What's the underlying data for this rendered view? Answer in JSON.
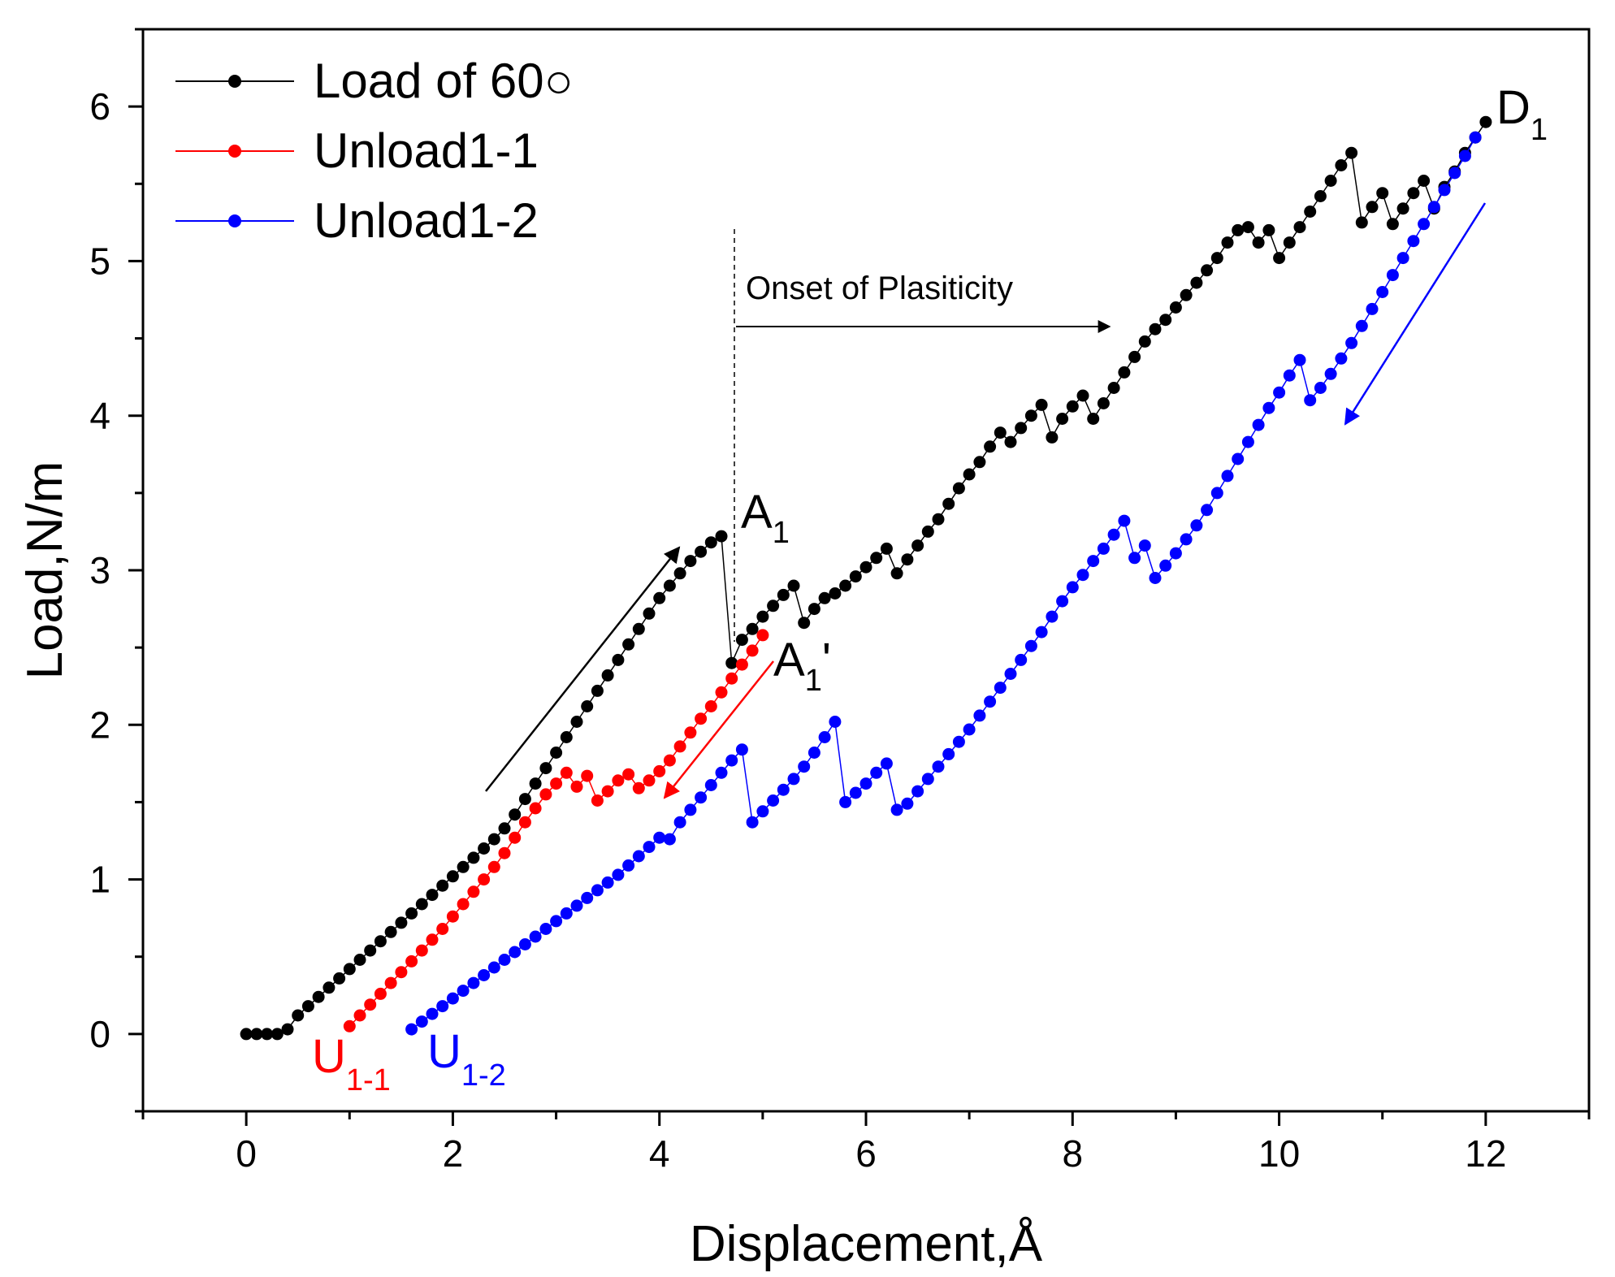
{
  "chart_data": {
    "type": "line",
    "title": "",
    "xlabel": "Displacement,Å",
    "ylabel": "Load,N/m",
    "xlim": [
      -1,
      13
    ],
    "ylim": [
      -0.5,
      6.5
    ],
    "xticks": [
      0,
      2,
      4,
      6,
      8,
      10,
      12
    ],
    "yticks": [
      0,
      1,
      2,
      3,
      4,
      5,
      6
    ],
    "grid": false,
    "legend_position": "top-left",
    "series": [
      {
        "name": "Load of 60○",
        "color": "#000000",
        "x": [
          0.0,
          0.1,
          0.2,
          0.3,
          0.4,
          0.5,
          0.6,
          0.7,
          0.8,
          0.9,
          1.0,
          1.1,
          1.2,
          1.3,
          1.4,
          1.5,
          1.6,
          1.7,
          1.8,
          1.9,
          2.0,
          2.1,
          2.2,
          2.3,
          2.4,
          2.5,
          2.6,
          2.7,
          2.8,
          2.9,
          3.0,
          3.1,
          3.2,
          3.3,
          3.4,
          3.5,
          3.6,
          3.7,
          3.8,
          3.9,
          4.0,
          4.1,
          4.2,
          4.3,
          4.4,
          4.5,
          4.6,
          4.7,
          4.8,
          4.9,
          5.0,
          5.1,
          5.2,
          5.3,
          5.4,
          5.5,
          5.6,
          5.7,
          5.8,
          5.9,
          6.0,
          6.1,
          6.2,
          6.3,
          6.4,
          6.5,
          6.6,
          6.7,
          6.8,
          6.9,
          7.0,
          7.1,
          7.2,
          7.3,
          7.4,
          7.5,
          7.6,
          7.7,
          7.8,
          7.9,
          8.0,
          8.1,
          8.2,
          8.3,
          8.4,
          8.5,
          8.6,
          8.7,
          8.8,
          8.9,
          9.0,
          9.1,
          9.2,
          9.3,
          9.4,
          9.5,
          9.6,
          9.7,
          9.8,
          9.9,
          10.0,
          10.1,
          10.2,
          10.3,
          10.4,
          10.5,
          10.6,
          10.7,
          10.8,
          10.9,
          11.0,
          11.1,
          11.2,
          11.3,
          11.4,
          11.5,
          11.6,
          11.7,
          11.8,
          11.9,
          12.0
        ],
        "y": [
          0.0,
          0.0,
          0.0,
          0.0,
          0.03,
          0.12,
          0.18,
          0.24,
          0.3,
          0.36,
          0.42,
          0.48,
          0.54,
          0.6,
          0.66,
          0.72,
          0.78,
          0.84,
          0.9,
          0.96,
          1.02,
          1.08,
          1.14,
          1.2,
          1.26,
          1.33,
          1.42,
          1.52,
          1.62,
          1.72,
          1.82,
          1.92,
          2.02,
          2.12,
          2.22,
          2.32,
          2.42,
          2.52,
          2.62,
          2.72,
          2.82,
          2.9,
          2.98,
          3.06,
          3.12,
          3.18,
          3.22,
          2.4,
          2.55,
          2.62,
          2.7,
          2.77,
          2.84,
          2.9,
          2.66,
          2.75,
          2.82,
          2.85,
          2.9,
          2.96,
          3.02,
          3.08,
          3.14,
          2.98,
          3.07,
          3.16,
          3.25,
          3.33,
          3.43,
          3.53,
          3.62,
          3.7,
          3.8,
          3.89,
          3.83,
          3.92,
          4.0,
          4.07,
          3.86,
          3.98,
          4.06,
          4.13,
          3.98,
          4.08,
          4.18,
          4.28,
          4.38,
          4.48,
          4.56,
          4.62,
          4.7,
          4.78,
          4.86,
          4.94,
          5.02,
          5.12,
          5.2,
          5.22,
          5.12,
          5.2,
          5.02,
          5.12,
          5.22,
          5.32,
          5.42,
          5.52,
          5.62,
          5.7,
          5.25,
          5.35,
          5.44,
          5.24,
          5.34,
          5.44,
          5.52,
          5.34,
          5.48,
          5.58,
          5.7,
          5.8,
          5.9
        ]
      },
      {
        "name": "Unload1-1",
        "color": "#ff0000",
        "x": [
          1.0,
          1.1,
          1.2,
          1.3,
          1.4,
          1.5,
          1.6,
          1.7,
          1.8,
          1.9,
          2.0,
          2.1,
          2.2,
          2.3,
          2.4,
          2.5,
          2.6,
          2.7,
          2.8,
          2.9,
          3.0,
          3.1,
          3.2,
          3.3,
          3.4,
          3.5,
          3.6,
          3.7,
          3.8,
          3.9,
          4.0,
          4.1,
          4.2,
          4.3,
          4.4,
          4.5,
          4.6,
          4.7,
          4.8,
          4.9,
          5.0
        ],
        "y": [
          0.05,
          0.12,
          0.19,
          0.26,
          0.33,
          0.4,
          0.47,
          0.54,
          0.61,
          0.68,
          0.76,
          0.84,
          0.92,
          1.0,
          1.08,
          1.17,
          1.27,
          1.37,
          1.46,
          1.55,
          1.62,
          1.69,
          1.6,
          1.67,
          1.51,
          1.57,
          1.64,
          1.68,
          1.59,
          1.64,
          1.7,
          1.77,
          1.86,
          1.95,
          2.04,
          2.12,
          2.21,
          2.3,
          2.39,
          2.48,
          2.58
        ]
      },
      {
        "name": "Unload1-2",
        "color": "#0000ff",
        "x": [
          1.6,
          1.7,
          1.8,
          1.9,
          2.0,
          2.1,
          2.2,
          2.3,
          2.4,
          2.5,
          2.6,
          2.7,
          2.8,
          2.9,
          3.0,
          3.1,
          3.2,
          3.3,
          3.4,
          3.5,
          3.6,
          3.7,
          3.8,
          3.9,
          4.0,
          4.1,
          4.2,
          4.3,
          4.4,
          4.5,
          4.6,
          4.7,
          4.8,
          4.9,
          5.0,
          5.1,
          5.2,
          5.3,
          5.4,
          5.5,
          5.6,
          5.7,
          5.8,
          5.9,
          6.0,
          6.1,
          6.2,
          6.3,
          6.4,
          6.5,
          6.6,
          6.7,
          6.8,
          6.9,
          7.0,
          7.1,
          7.2,
          7.3,
          7.4,
          7.5,
          7.6,
          7.7,
          7.8,
          7.9,
          8.0,
          8.1,
          8.2,
          8.3,
          8.4,
          8.5,
          8.6,
          8.7,
          8.8,
          8.9,
          9.0,
          9.1,
          9.2,
          9.3,
          9.4,
          9.5,
          9.6,
          9.7,
          9.8,
          9.9,
          10.0,
          10.1,
          10.2,
          10.3,
          10.4,
          10.5,
          10.6,
          10.7,
          10.8,
          10.9,
          11.0,
          11.1,
          11.2,
          11.3,
          11.4,
          11.5,
          11.6,
          11.7,
          11.8,
          11.9
        ],
        "y": [
          0.03,
          0.08,
          0.13,
          0.18,
          0.23,
          0.28,
          0.33,
          0.38,
          0.43,
          0.48,
          0.53,
          0.58,
          0.63,
          0.68,
          0.73,
          0.78,
          0.83,
          0.88,
          0.93,
          0.98,
          1.03,
          1.09,
          1.15,
          1.21,
          1.27,
          1.26,
          1.37,
          1.45,
          1.53,
          1.61,
          1.69,
          1.77,
          1.84,
          1.37,
          1.44,
          1.51,
          1.58,
          1.65,
          1.73,
          1.82,
          1.92,
          2.02,
          1.5,
          1.56,
          1.62,
          1.69,
          1.75,
          1.45,
          1.49,
          1.57,
          1.65,
          1.73,
          1.81,
          1.89,
          1.97,
          2.06,
          2.15,
          2.24,
          2.33,
          2.42,
          2.51,
          2.6,
          2.7,
          2.8,
          2.89,
          2.97,
          3.06,
          3.14,
          3.23,
          3.32,
          3.08,
          3.16,
          2.95,
          3.03,
          3.11,
          3.2,
          3.29,
          3.39,
          3.5,
          3.61,
          3.72,
          3.83,
          3.94,
          4.05,
          4.15,
          4.26,
          4.36,
          4.1,
          4.18,
          4.27,
          4.37,
          4.47,
          4.58,
          4.69,
          4.8,
          4.91,
          5.02,
          5.13,
          5.24,
          5.35,
          5.46,
          5.57,
          5.68,
          5.8
        ]
      }
    ],
    "annotations": [
      {
        "id": "A1",
        "main": "A",
        "sub": "1",
        "suffix": "",
        "color": "#000000"
      },
      {
        "id": "A1p",
        "main": "A",
        "sub": "1",
        "suffix": "'",
        "color": "#000000"
      },
      {
        "id": "D1",
        "main": "D",
        "sub": "1",
        "suffix": "",
        "color": "#000000"
      },
      {
        "id": "U11",
        "main": "U",
        "sub": "1-1",
        "suffix": "",
        "color": "#ff0000"
      },
      {
        "id": "U12",
        "main": "U",
        "sub": "1-2",
        "suffix": "",
        "color": "#0000ff"
      },
      {
        "id": "onset",
        "text": "Onset of Plasiticity",
        "color": "#000000"
      }
    ]
  }
}
